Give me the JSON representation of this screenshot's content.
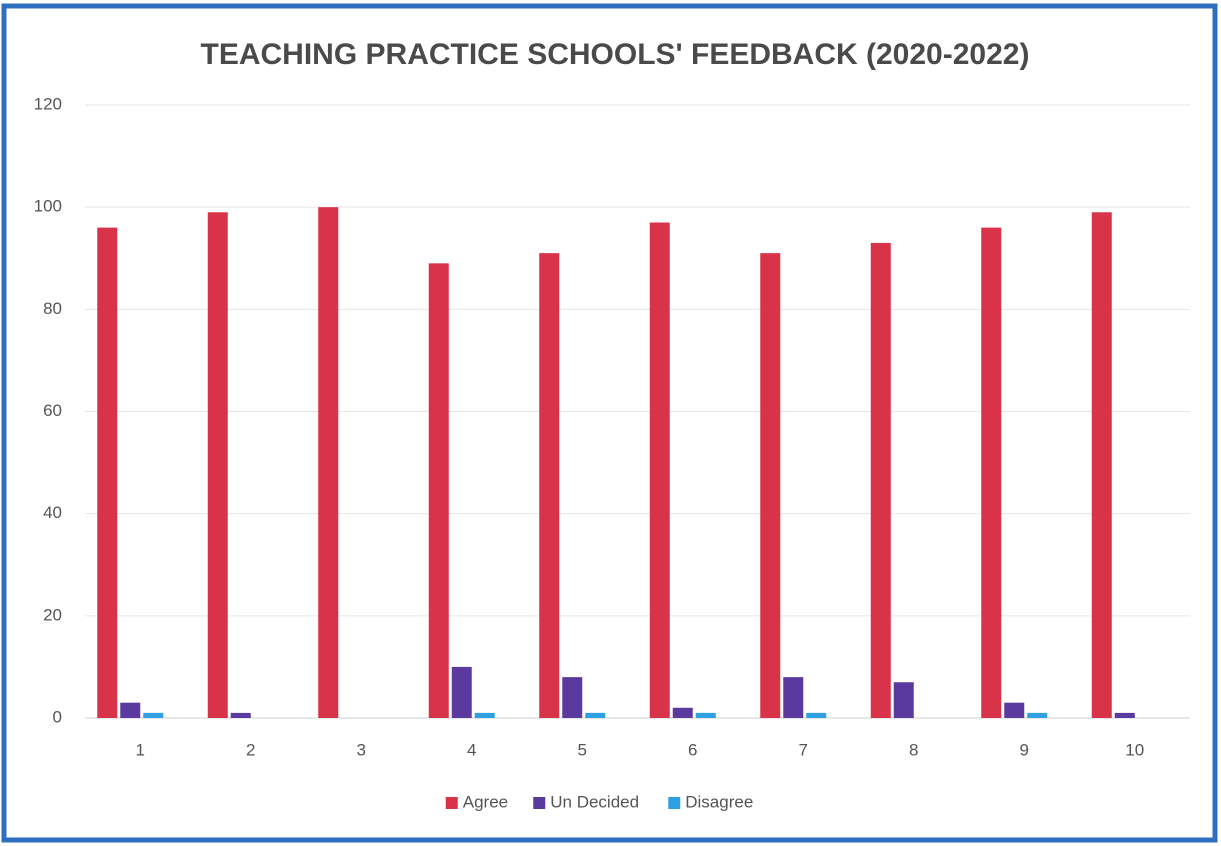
{
  "chart_data": {
    "type": "bar",
    "title": "TEACHING PRACTICE SCHOOLS' FEEDBACK (2020-2022)",
    "categories": [
      "1",
      "2",
      "3",
      "4",
      "5",
      "6",
      "7",
      "8",
      "9",
      "10"
    ],
    "series": [
      {
        "name": "Agree",
        "color": "#d9334a",
        "values": [
          96,
          99,
          100,
          89,
          91,
          97,
          91,
          93,
          96,
          99
        ]
      },
      {
        "name": "Un Decided",
        "color": "#5b3aa0",
        "values": [
          3,
          1,
          0,
          10,
          8,
          2,
          8,
          7,
          3,
          1
        ]
      },
      {
        "name": "Disagree",
        "color": "#2e9fe0",
        "values": [
          1,
          0,
          0,
          1,
          1,
          1,
          1,
          0,
          1,
          0
        ]
      }
    ],
    "ylim": [
      0,
      120
    ],
    "yticks": [
      0,
      20,
      40,
      60,
      80,
      100,
      120
    ],
    "grid": true,
    "legend": "bottom"
  }
}
